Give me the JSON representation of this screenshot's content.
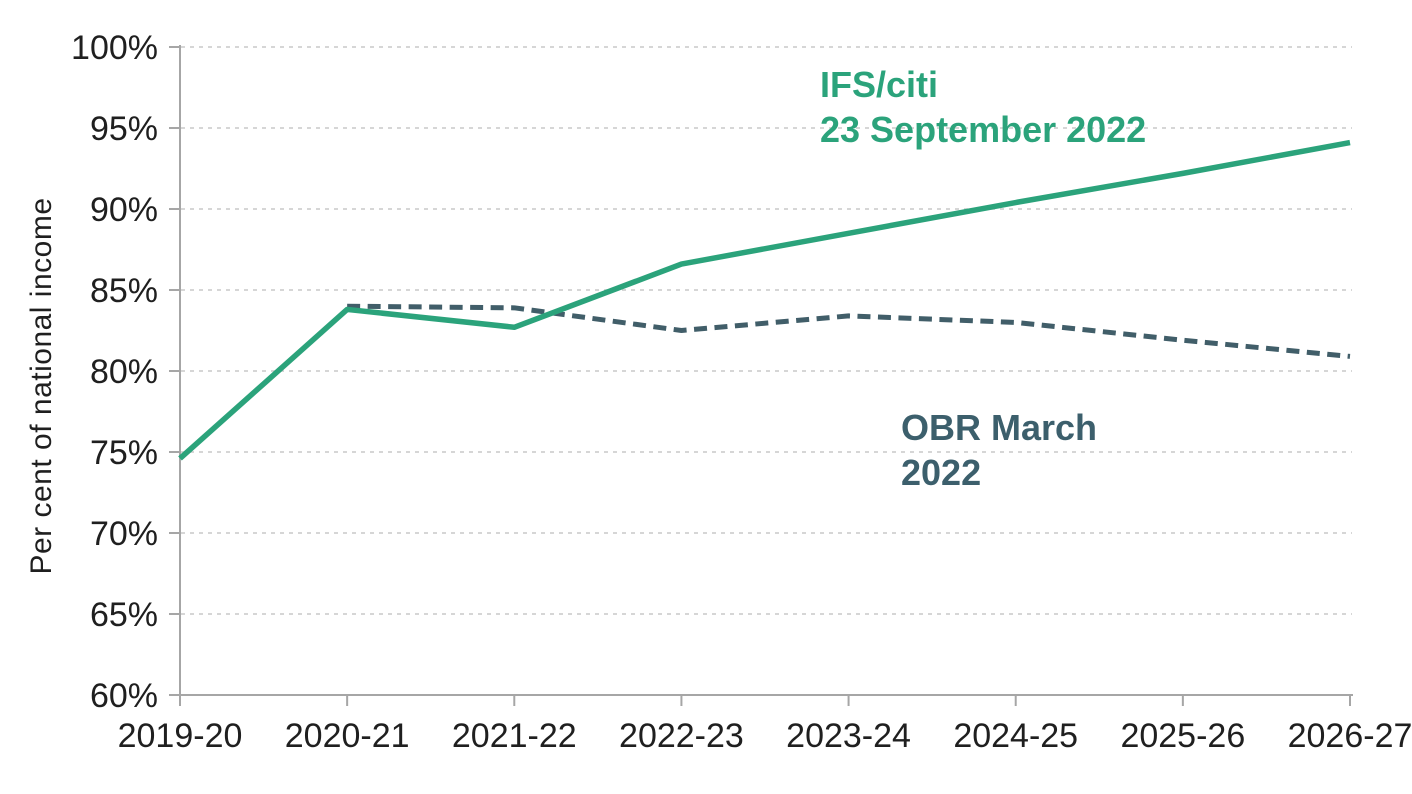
{
  "chart_data": {
    "type": "line",
    "title": "",
    "xlabel": "",
    "ylabel": "Per cent of national income",
    "categories": [
      "2019-20",
      "2020-21",
      "2021-22",
      "2022-23",
      "2023-24",
      "2024-25",
      "2025-26",
      "2026-27"
    ],
    "ylim": [
      60,
      100
    ],
    "ytick_step": 5,
    "ytick_suffix": "%",
    "grid": "horizontal-dashed",
    "legend_position": "inline-annotations",
    "series": [
      {
        "name": "OBR March 2022",
        "style": "dashed",
        "color": "#415e69",
        "values": [
          null,
          84.0,
          83.9,
          82.5,
          83.4,
          83.0,
          81.9,
          80.9
        ]
      },
      {
        "name": "IFS/citi 23 September 2022",
        "style": "solid",
        "color": "#2ba37b",
        "values": [
          74.6,
          83.8,
          82.7,
          86.6,
          88.5,
          90.4,
          92.2,
          94.1
        ]
      }
    ],
    "annotations": {
      "ifs": {
        "line1": "IFS/citi",
        "line2": "23 September 2022",
        "color": "#2ba37b"
      },
      "obr": {
        "line1": "OBR March",
        "line2": "2022",
        "color": "#3c5f6c"
      }
    }
  },
  "colors": {
    "background": "#ffffff",
    "gridline": "#c9c9c9",
    "axis": "#a6a6a6",
    "tick_text": "#1f1f1f"
  }
}
